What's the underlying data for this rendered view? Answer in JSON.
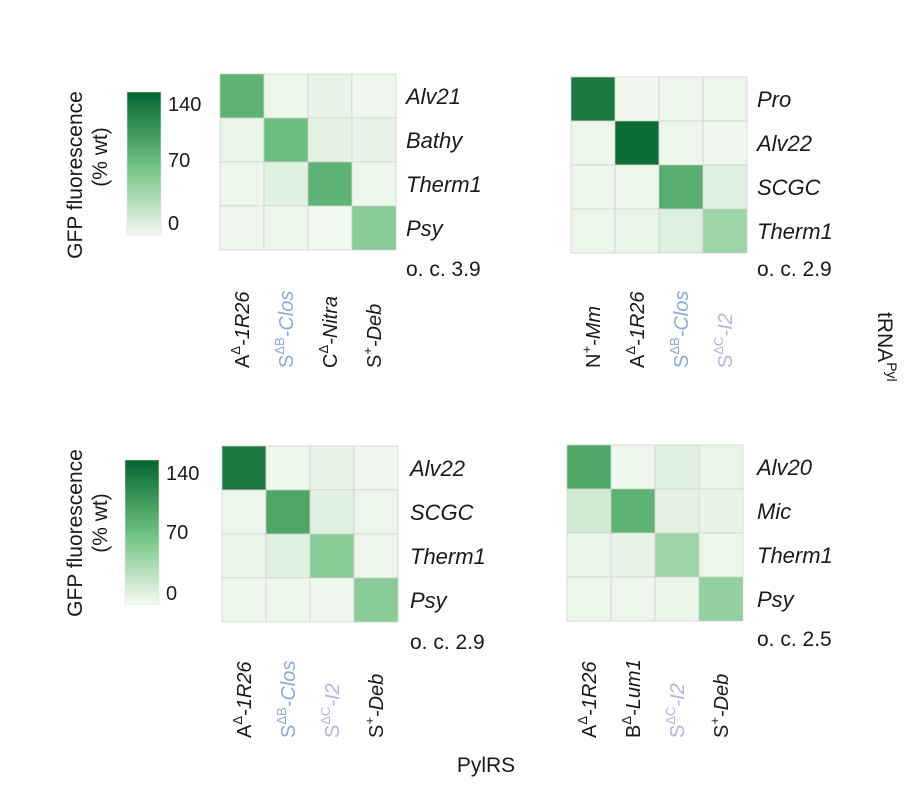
{
  "colors": {
    "low": "#f4f9f1",
    "mid": "#6cc07e",
    "high": "#04652f",
    "grid": "#cfcfcf",
    "text": "#1a1a1a",
    "highlight_label": "#8fa8d8",
    "faded_label": "#b4b4df"
  },
  "colorbar": {
    "title_line1": "GFP fluorescence",
    "title_line2": "(% wt)",
    "ticks": [
      "140",
      "70",
      "0"
    ],
    "max": 140
  },
  "axis_labels": {
    "x": "PylRS",
    "y_right_main": "tRNA",
    "y_right_sup": "Pyl"
  },
  "chart_data": [
    {
      "type": "heatmap",
      "rows": [
        "Alv21",
        "Bathy",
        "Therm1",
        "Psy"
      ],
      "columns": [
        {
          "main": "A",
          "sup": "Δ",
          "suffix": "-1R26",
          "italic_suffix": true,
          "tone": "normal"
        },
        {
          "main": "S",
          "sup": "ΔB",
          "suffix": "-Clos",
          "italic_suffix": true,
          "tone": "highlight"
        },
        {
          "main": "C",
          "sup": "Δ",
          "suffix": "-Nitra",
          "italic_suffix": true,
          "tone": "normal"
        },
        {
          "main": "S",
          "sup": "+",
          "suffix": "-Deb",
          "italic_suffix": true,
          "tone": "normal"
        }
      ],
      "values": [
        [
          80,
          3,
          6,
          2
        ],
        [
          5,
          70,
          8,
          6
        ],
        [
          4,
          10,
          80,
          3
        ],
        [
          2,
          3,
          1,
          55
        ]
      ],
      "orthogonality": "o. c. 3.9"
    },
    {
      "type": "heatmap",
      "rows": [
        "Pro",
        "Alv22",
        "SCGC",
        "Therm1"
      ],
      "columns": [
        {
          "main": "N",
          "sup": "+",
          "suffix": "-Mm",
          "italic_suffix": true,
          "tone": "normal"
        },
        {
          "main": "A",
          "sup": "Δ",
          "suffix": "-1R26",
          "italic_suffix": true,
          "tone": "normal"
        },
        {
          "main": "S",
          "sup": "ΔB",
          "suffix": "-Clos",
          "italic_suffix": true,
          "tone": "highlight"
        },
        {
          "main": "S",
          "sup": "ΔC",
          "suffix": "-I2",
          "italic_suffix": true,
          "tone": "faded"
        }
      ],
      "values": [
        [
          125,
          2,
          3,
          3
        ],
        [
          3,
          135,
          4,
          2
        ],
        [
          3,
          4,
          85,
          10
        ],
        [
          4,
          5,
          12,
          45
        ]
      ],
      "orthogonality": "o. c. 2.9"
    },
    {
      "type": "heatmap",
      "rows": [
        "Alv22",
        "SCGC",
        "Therm1",
        "Psy"
      ],
      "columns": [
        {
          "main": "A",
          "sup": "Δ",
          "suffix": "-1R26",
          "italic_suffix": true,
          "tone": "normal"
        },
        {
          "main": "S",
          "sup": "ΔB",
          "suffix": "-Clos",
          "italic_suffix": true,
          "tone": "highlight"
        },
        {
          "main": "S",
          "sup": "ΔC",
          "suffix": "-I2",
          "italic_suffix": true,
          "tone": "faded"
        },
        {
          "main": "S",
          "sup": "+",
          "suffix": "-Deb",
          "italic_suffix": true,
          "tone": "normal"
        }
      ],
      "values": [
        [
          125,
          3,
          6,
          2
        ],
        [
          4,
          90,
          10,
          4
        ],
        [
          5,
          10,
          55,
          4
        ],
        [
          3,
          3,
          2,
          55
        ]
      ],
      "orthogonality": "o. c. 2.9"
    },
    {
      "type": "heatmap",
      "rows": [
        "Alv20",
        "Mic",
        "Therm1",
        "Psy"
      ],
      "columns": [
        {
          "main": "A",
          "sup": "Δ",
          "suffix": "-1R26",
          "italic_suffix": true,
          "tone": "normal"
        },
        {
          "main": "B",
          "sup": "Δ",
          "suffix": "-Lum1",
          "italic_suffix": true,
          "tone": "normal"
        },
        {
          "main": "S",
          "sup": "ΔC",
          "suffix": "-I2",
          "italic_suffix": true,
          "tone": "faded"
        },
        {
          "main": "S",
          "sup": "+",
          "suffix": "-Deb",
          "italic_suffix": true,
          "tone": "normal"
        }
      ],
      "values": [
        [
          90,
          3,
          10,
          5
        ],
        [
          18,
          80,
          8,
          6
        ],
        [
          5,
          6,
          45,
          4
        ],
        [
          4,
          4,
          5,
          50
        ]
      ],
      "orthogonality": "o. c. 2.5"
    }
  ]
}
